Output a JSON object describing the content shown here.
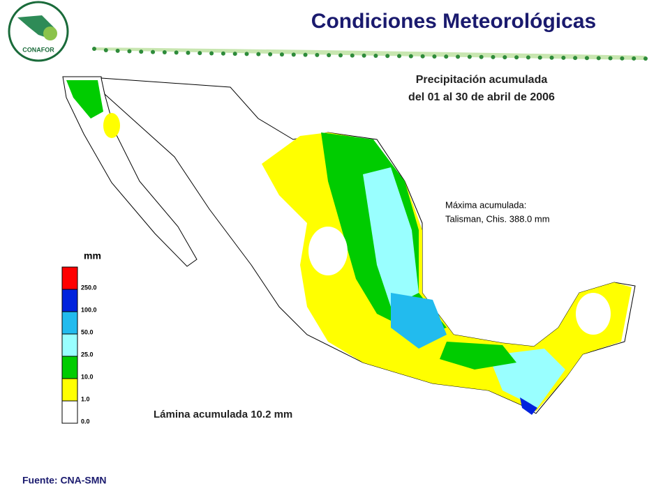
{
  "header": {
    "title": "Condiciones Meteorológicas",
    "logo": "CONAFOR"
  },
  "map": {
    "title_line1": "Precipitación acumulada",
    "title_line2": "del 01 al 30 de abril de 2006",
    "max_label": "Máxima acumulada:",
    "max_value": "Talisman, Chis. 388.0 mm",
    "summary": "Lámina acumulada 10.2 mm",
    "legend": {
      "unit": "mm",
      "entries": [
        {
          "label": "250.0",
          "color": "#ff0000"
        },
        {
          "label": "100.0",
          "color": "#0022dd"
        },
        {
          "label": "50.0",
          "color": "#22bbee"
        },
        {
          "label": "25.0",
          "color": "#99ffff"
        },
        {
          "label": "10.0",
          "color": "#00cc00"
        },
        {
          "label": "1.0",
          "color": "#ffff00"
        },
        {
          "label": "0.0",
          "color": "#ffffff"
        }
      ]
    }
  },
  "footer": {
    "source": "Fuente: CNA-SMN"
  }
}
